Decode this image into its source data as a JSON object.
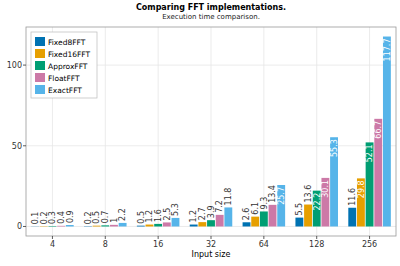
{
  "chart_data": {
    "type": "bar",
    "title": "Comparing FFT implementations.",
    "subtitle": "Execution time comparison.",
    "x_label": "Input size",
    "categories": [
      "4",
      "8",
      "16",
      "32",
      "64",
      "128",
      "256"
    ],
    "series": [
      {
        "name": "Fixed8FFT",
        "color": "#0072B2",
        "values": [
          0.1,
          0.2,
          0.5,
          1.2,
          2.6,
          5.5,
          11.6
        ]
      },
      {
        "name": "Fixed16FFT",
        "color": "#E69F00",
        "values": [
          0.2,
          0.5,
          1.2,
          2.7,
          6.1,
          13.6,
          29.8
        ]
      },
      {
        "name": "ApproxFFT",
        "color": "#009E73",
        "values": [
          0.3,
          0.7,
          1.6,
          3.9,
          9.3,
          22.2,
          52.1
        ]
      },
      {
        "name": "FloatFFT",
        "color": "#CC79A7",
        "values": [
          0.4,
          1.0,
          2.5,
          7.2,
          13.4,
          30.1,
          66.7
        ]
      },
      {
        "name": "ExactFFT",
        "color": "#56B4E9",
        "values": [
          0.9,
          2.2,
          5.3,
          11.8,
          25.7,
          55.3,
          117.7
        ]
      }
    ],
    "ylim": [
      -5.9,
      123.6
    ],
    "yticks": [
      0,
      50,
      100
    ],
    "grid": true,
    "legend": "top-left",
    "data_labels": true
  }
}
